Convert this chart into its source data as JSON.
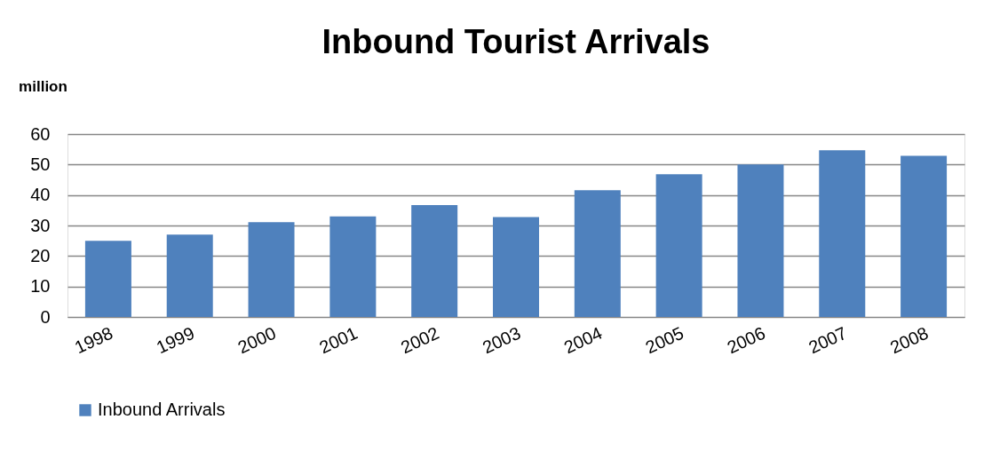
{
  "chart_data": {
    "type": "bar",
    "title": "Inbound Tourist Arrivals",
    "ylabel": "million",
    "categories": [
      "1998",
      "1999",
      "2000",
      "2001",
      "2002",
      "2003",
      "2004",
      "2005",
      "2006",
      "2007",
      "2008"
    ],
    "series": [
      {
        "name": "Inbound Arrivals",
        "color": "#4f81bd",
        "values": [
          25,
          27,
          31.1,
          33,
          36.7,
          32.8,
          41.6,
          46.8,
          50,
          54.7,
          52.9
        ]
      }
    ],
    "ylim": [
      0,
      60
    ],
    "yticks": [
      0,
      10,
      20,
      30,
      40,
      50,
      60
    ],
    "grid": "y",
    "legend": "bottom"
  }
}
